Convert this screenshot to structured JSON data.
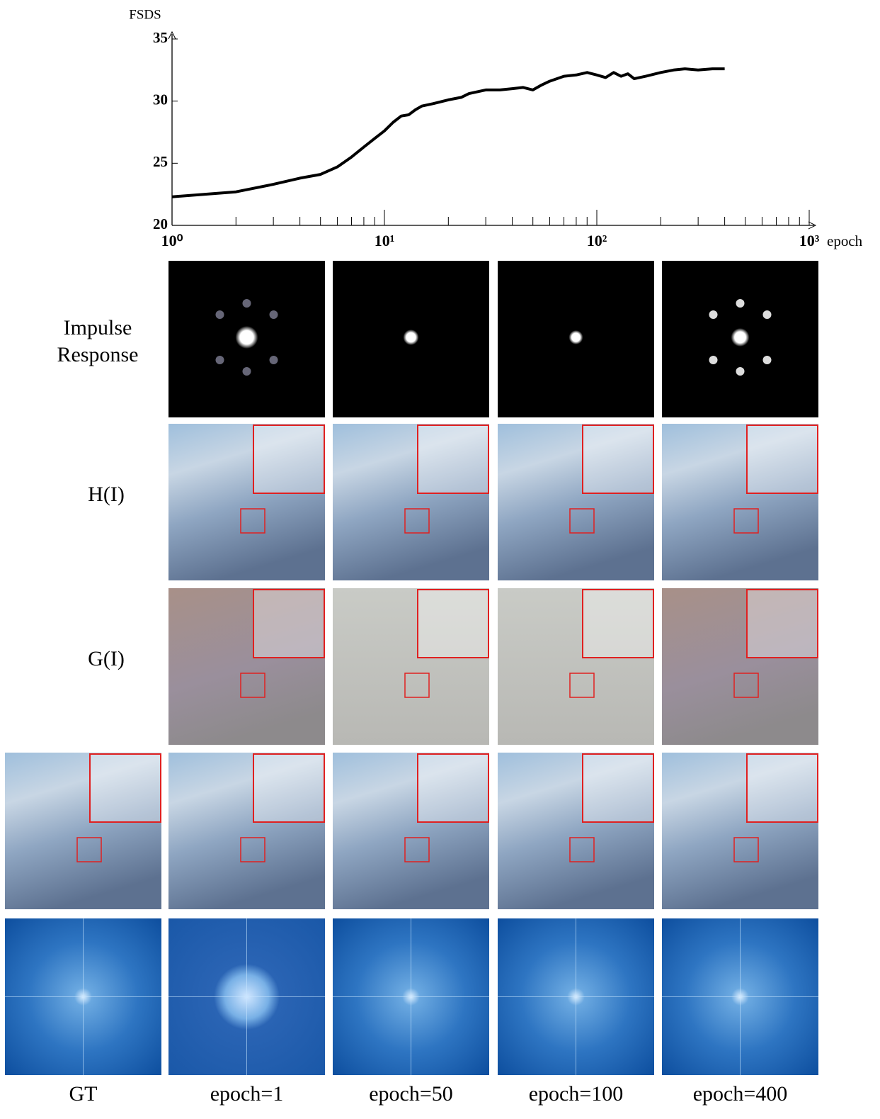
{
  "chart_data": {
    "type": "line",
    "ylabel": "FSDS",
    "xlabel": "epoch",
    "log_x": true,
    "color": "#000000",
    "x": [
      1,
      2,
      3,
      4,
      5,
      6,
      7,
      8,
      9,
      10,
      11,
      12,
      13,
      14,
      15,
      17,
      20,
      23,
      25,
      30,
      35,
      40,
      45,
      50,
      55,
      60,
      70,
      80,
      90,
      100,
      110,
      120,
      130,
      140,
      150,
      170,
      200,
      230,
      260,
      300,
      350,
      400
    ],
    "values": [
      22.3,
      22.7,
      23.3,
      23.8,
      24.1,
      24.7,
      25.5,
      26.3,
      27.0,
      27.6,
      28.3,
      28.8,
      28.9,
      29.3,
      29.6,
      29.8,
      30.1,
      30.3,
      30.6,
      30.9,
      30.9,
      31.0,
      31.1,
      30.9,
      31.3,
      31.6,
      32.0,
      32.1,
      32.3,
      32.1,
      31.9,
      32.3,
      32.0,
      32.2,
      31.8,
      32.0,
      32.3,
      32.5,
      32.6,
      32.5,
      32.6,
      32.6
    ],
    "xlim": [
      1,
      1000
    ],
    "ylim": [
      20,
      35
    ],
    "xticks": [
      {
        "value": 1,
        "label": "10⁰"
      },
      {
        "value": 10,
        "label": "10¹"
      },
      {
        "value": 100,
        "label": "10²"
      },
      {
        "value": 1000,
        "label": "10³"
      }
    ],
    "xminorticks": [
      2,
      3,
      4,
      5,
      6,
      7,
      8,
      9,
      20,
      30,
      40,
      50,
      60,
      70,
      80,
      90,
      200,
      300,
      400,
      500,
      600,
      700,
      800,
      900
    ],
    "yticks": [
      20,
      25,
      30,
      35
    ]
  },
  "rows": [
    "Impulse Response",
    "H(I)",
    "G(I)"
  ],
  "columns": [
    "GT",
    "epoch=1",
    "epoch=50",
    "epoch=100",
    "epoch=400"
  ]
}
